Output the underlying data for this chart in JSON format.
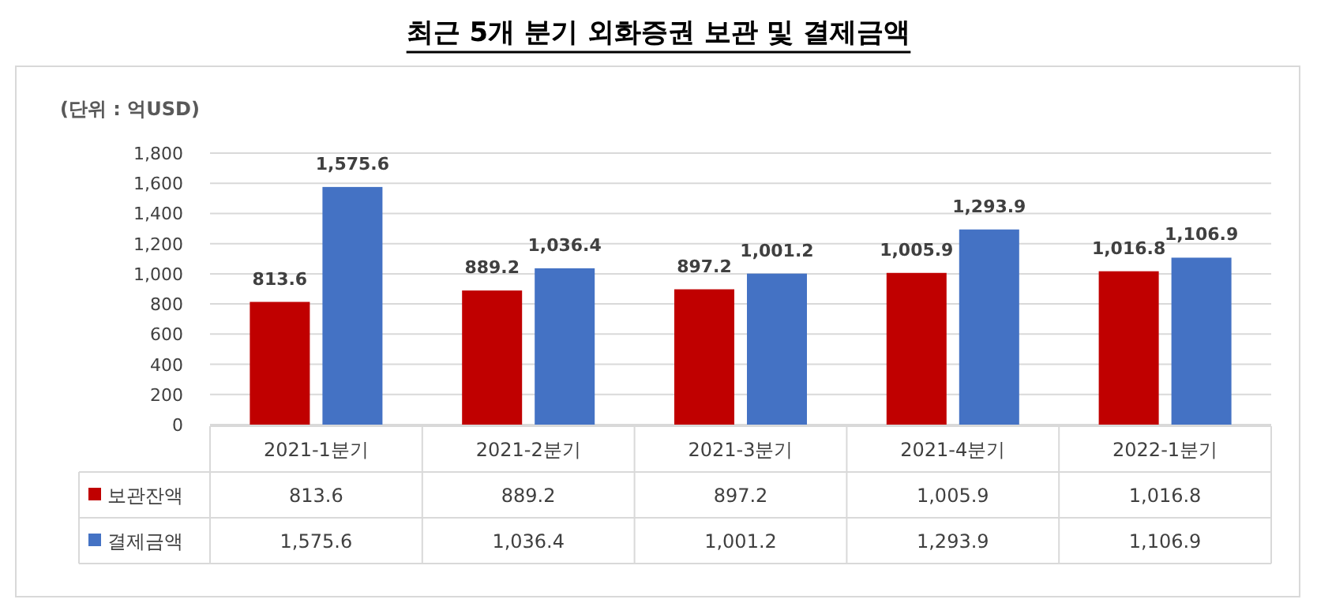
{
  "chart_data": {
    "type": "bar",
    "title": "최근 5개 분기 외화증권 보관 및 결제금액",
    "ylabel": "(단위 : 억USD)",
    "categories": [
      "2021-1분기",
      "2021-2분기",
      "2021-3분기",
      "2021-4분기",
      "2022-1분기"
    ],
    "series": [
      {
        "name": "보관잔액",
        "color": "#c00000",
        "values": [
          813.6,
          889.2,
          897.2,
          1005.9,
          1016.8
        ],
        "value_labels": [
          "813.6",
          "889.2",
          "897.2",
          "1,005.9",
          "1,016.8"
        ]
      },
      {
        "name": "결제금액",
        "color": "#4472c4",
        "values": [
          1575.6,
          1036.4,
          1001.2,
          1293.9,
          1106.9
        ],
        "value_labels": [
          "1,575.6",
          "1,036.4",
          "1,001.2",
          "1,293.9",
          "1,106.9"
        ]
      }
    ],
    "ylim": [
      0,
      1800
    ],
    "yticks": [
      {
        "value": 0,
        "label": "0"
      },
      {
        "value": 200,
        "label": "200"
      },
      {
        "value": 400,
        "label": "400"
      },
      {
        "value": 600,
        "label": "600"
      },
      {
        "value": 800,
        "label": "800"
      },
      {
        "value": 1000,
        "label": "1,000"
      },
      {
        "value": 1200,
        "label": "1,200"
      },
      {
        "value": 1400,
        "label": "1,400"
      },
      {
        "value": 1600,
        "label": "1,600"
      },
      {
        "value": 1800,
        "label": "1,800"
      }
    ],
    "grid": "y",
    "legend": "bottom"
  }
}
